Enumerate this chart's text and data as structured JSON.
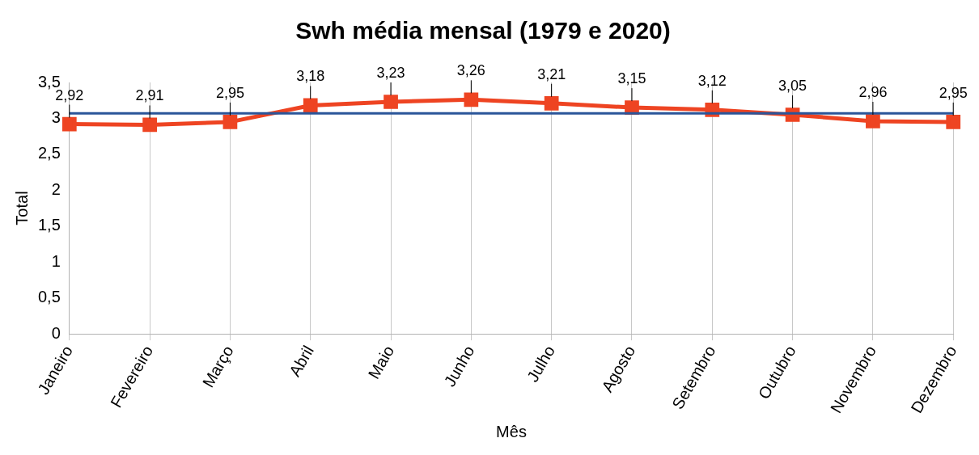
{
  "chart_data": {
    "type": "line",
    "title": "Swh média mensal (1979 e 2020)",
    "xlabel": "Mês",
    "ylabel": "Total",
    "categories": [
      "Janeiro",
      "Fevereiro",
      "Março",
      "Abril",
      "Maio",
      "Junho",
      "Julho",
      "Agosto",
      "Setembro",
      "Outubro",
      "Novembro",
      "Dezembro"
    ],
    "series": [
      {
        "color": "#ee4422",
        "values": [
          2.92,
          2.91,
          2.95,
          3.18,
          3.23,
          3.26,
          3.21,
          3.15,
          3.12,
          3.05,
          2.96,
          2.95
        ],
        "value_labels": [
          "2,92",
          "2,91",
          "2,95",
          "3,18",
          "3,23",
          "3,26",
          "3,21",
          "3,15",
          "3,12",
          "3,05",
          "2,96",
          "2,95"
        ]
      }
    ],
    "ref_lines": [
      {
        "axis": "y",
        "value": 3.07,
        "color": "#2a5599"
      }
    ],
    "ylim": [
      0,
      3.5
    ],
    "yticks": [
      0,
      {
        "value": 0.5,
        "label": "0,5"
      },
      1,
      {
        "value": 1.5,
        "label": "1,5"
      },
      2,
      {
        "value": 2.5,
        "label": "2,5"
      },
      3,
      {
        "value": 3.5,
        "label": "3,5"
      }
    ],
    "grid": "x",
    "legend": false,
    "marker": "square",
    "line_style": "solid"
  }
}
